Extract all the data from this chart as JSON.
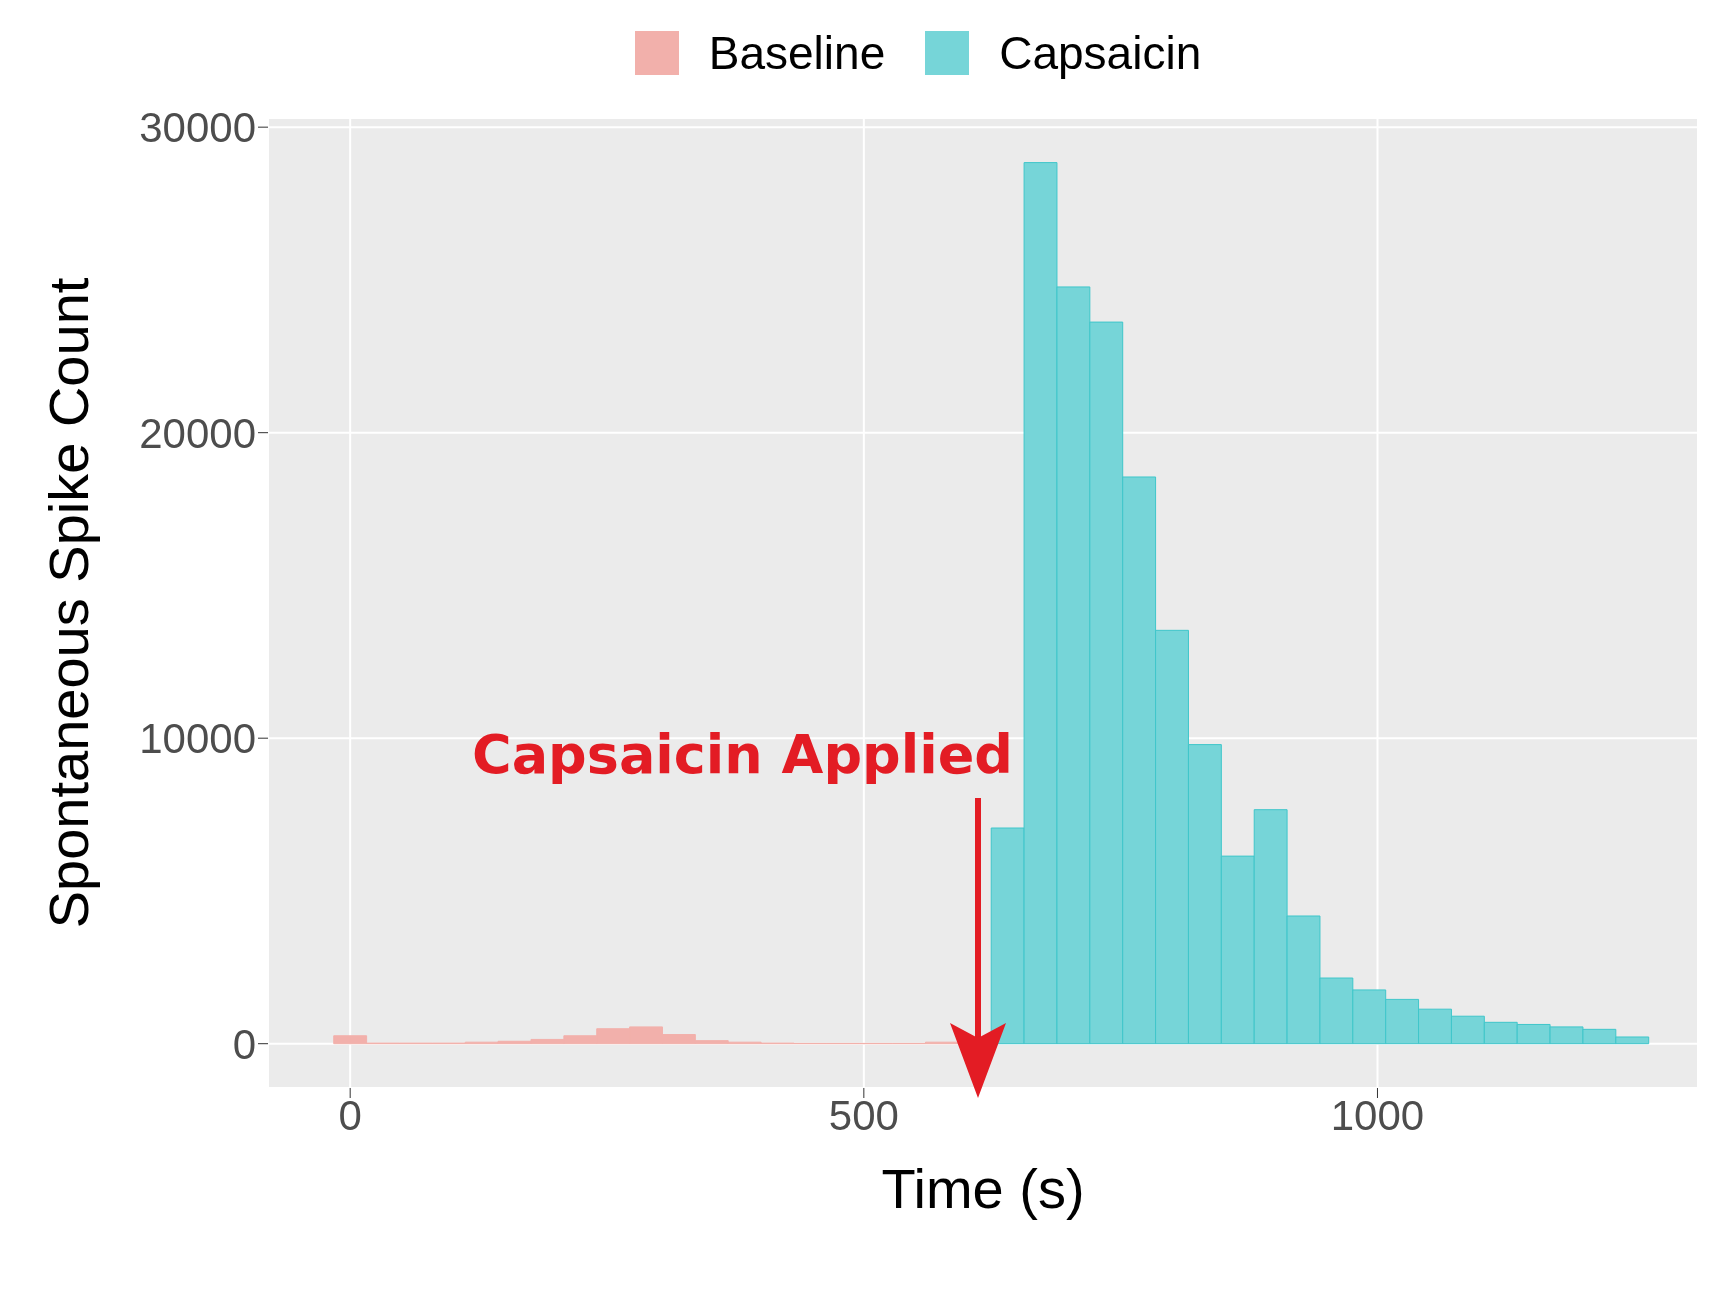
{
  "chart_data": {
    "type": "histogram",
    "xlabel": "Time (s)",
    "ylabel": "Spontaneous Spike Count",
    "bins": [
      -16,
      16,
      48,
      80,
      112,
      144,
      176,
      208,
      240,
      272,
      304,
      336,
      368,
      400,
      432,
      464,
      496,
      528,
      560,
      592,
      624,
      656,
      688,
      720,
      752,
      784,
      816,
      848,
      880,
      912,
      944,
      976,
      1008,
      1040,
      1072,
      1104,
      1136,
      1168,
      1200,
      1232,
      1264
    ],
    "series": [
      {
        "name": "Baseline",
        "color": "#f2b0ab",
        "values": [
          260,
          20,
          20,
          20,
          50,
          80,
          140,
          260,
          490,
          550,
          300,
          100,
          50,
          20,
          10,
          10,
          10,
          10,
          50,
          10,
          null,
          null,
          null,
          null,
          null,
          null,
          null,
          null,
          null,
          null,
          null,
          null,
          null,
          null,
          null,
          null,
          null,
          null,
          null,
          null
        ]
      },
      {
        "name": "Capsaicin",
        "color": "#76d5d8",
        "values": [
          null,
          null,
          null,
          null,
          null,
          null,
          null,
          null,
          null,
          null,
          null,
          null,
          null,
          null,
          null,
          null,
          null,
          null,
          null,
          null,
          7060,
          28840,
          24770,
          23620,
          18550,
          13530,
          9790,
          6140,
          7660,
          4180,
          2150,
          1760,
          1450,
          1130,
          900,
          700,
          630,
          550,
          470,
          220
        ]
      }
    ],
    "xlim": [
      -80,
      1312
    ],
    "xticks": [
      0,
      500,
      1000
    ],
    "ylim": [
      -1450,
      30300
    ],
    "yticks": [
      0,
      10000,
      20000,
      30000
    ],
    "grid": true,
    "legend": "top",
    "annotations": [
      "Capsaicin Applied"
    ]
  }
}
